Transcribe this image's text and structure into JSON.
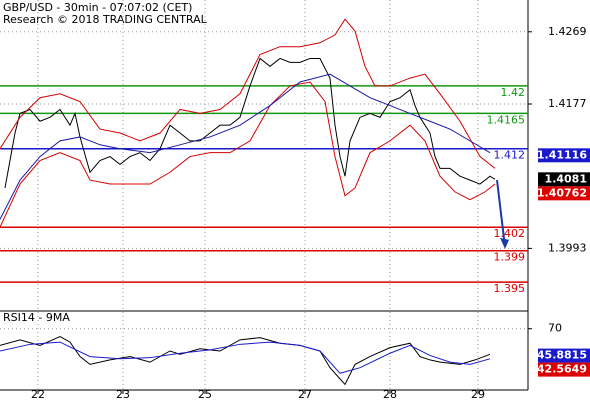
{
  "chart_data": [
    {
      "type": "line",
      "title": "GBP/USD - 30min - 07:07:02 (CET)",
      "subtitle": "Research © 2018 TRADING CENTRAL",
      "xlim": [
        0,
        528
      ],
      "ylim": [
        1.43095,
        1.39145
      ],
      "yticks": [
        1.4269,
        1.4177,
        1.3993
      ],
      "grid": true,
      "series": [
        {
          "color": "#000000",
          "x": [
            5,
            10,
            15,
            20,
            30,
            40,
            50,
            60,
            70,
            75,
            80,
            90,
            100,
            110,
            120,
            130,
            140,
            150,
            160,
            170,
            180,
            190,
            200,
            210,
            220,
            230,
            240,
            250,
            260,
            270,
            280,
            290,
            300,
            310,
            320,
            330,
            335,
            340,
            345,
            350,
            360,
            370,
            380,
            390,
            400,
            410,
            415,
            420,
            430,
            435,
            440,
            450,
            460,
            470,
            480,
            490,
            495
          ],
          "values": [
            1.407,
            1.4105,
            1.414,
            1.4165,
            1.417,
            1.4155,
            1.416,
            1.417,
            1.415,
            1.4165,
            1.4135,
            1.409,
            1.4105,
            1.411,
            1.41,
            1.411,
            1.4115,
            1.4105,
            1.412,
            1.415,
            1.414,
            1.413,
            1.413,
            1.414,
            1.415,
            1.415,
            1.416,
            1.42,
            1.4235,
            1.4225,
            1.4235,
            1.423,
            1.423,
            1.4235,
            1.4235,
            1.421,
            1.415,
            1.411,
            1.4085,
            1.413,
            1.416,
            1.4165,
            1.416,
            1.418,
            1.4185,
            1.4195,
            1.4175,
            1.416,
            1.414,
            1.411,
            1.4095,
            1.4095,
            1.4085,
            1.408,
            1.4075,
            1.4085,
            1.4081
          ]
        },
        {
          "color": "#d40000",
          "x": [
            0,
            20,
            40,
            60,
            80,
            100,
            120,
            140,
            160,
            180,
            200,
            220,
            240,
            260,
            280,
            300,
            320,
            335,
            345,
            355,
            365,
            375,
            390,
            410,
            425,
            440,
            460,
            480,
            495
          ],
          "values": [
            1.412,
            1.416,
            1.4185,
            1.419,
            1.418,
            1.4145,
            1.414,
            1.413,
            1.414,
            1.417,
            1.4165,
            1.417,
            1.419,
            1.424,
            1.425,
            1.425,
            1.4255,
            1.4265,
            1.4285,
            1.427,
            1.4225,
            1.42,
            1.42,
            1.421,
            1.4215,
            1.419,
            1.4155,
            1.411,
            1.4095
          ]
        },
        {
          "color": "#d40000",
          "x": [
            0,
            20,
            40,
            60,
            80,
            90,
            110,
            130,
            150,
            170,
            190,
            210,
            230,
            250,
            270,
            290,
            310,
            325,
            335,
            345,
            355,
            370,
            390,
            410,
            425,
            440,
            455,
            470,
            485,
            495
          ],
          "values": [
            1.402,
            1.4075,
            1.4105,
            1.4115,
            1.4105,
            1.408,
            1.4075,
            1.4075,
            1.4075,
            1.409,
            1.411,
            1.4115,
            1.4115,
            1.413,
            1.4175,
            1.42,
            1.4205,
            1.418,
            1.411,
            1.406,
            1.407,
            1.4115,
            1.413,
            1.415,
            1.413,
            1.4085,
            1.4065,
            1.4055,
            1.4065,
            1.4075
          ]
        },
        {
          "color": "#1a1aa6",
          "x": [
            0,
            20,
            40,
            60,
            80,
            100,
            120,
            150,
            180,
            210,
            240,
            270,
            300,
            330,
            350,
            370,
            390,
            410,
            430,
            450,
            470,
            490
          ],
          "values": [
            1.403,
            1.408,
            1.411,
            1.413,
            1.4135,
            1.4125,
            1.412,
            1.4115,
            1.4125,
            1.4135,
            1.415,
            1.4175,
            1.4205,
            1.4215,
            1.42,
            1.4185,
            1.4175,
            1.4165,
            1.4155,
            1.4145,
            1.413,
            1.4115
          ]
        }
      ],
      "projection": {
        "color": "#1a3aa6",
        "x": [
          497,
          505
        ],
        "values": [
          1.408,
          1.3995
        ]
      },
      "levels": [
        {
          "value": 1.42,
          "color": "#119911"
        },
        {
          "value": 1.4165,
          "color": "#119911"
        },
        {
          "value": 1.412,
          "color": "#1a1acc"
        },
        {
          "value": 1.402,
          "color": "#dd0000"
        },
        {
          "value": 1.399,
          "color": "#dd0000"
        },
        {
          "value": 1.395,
          "color": "#dd0000"
        }
      ],
      "markers": [
        {
          "value": 1.41116,
          "color": "#1a1acc"
        },
        {
          "value": 1.4081,
          "color": "#000000"
        },
        {
          "value": 1.40762,
          "color": "#dd0000"
        }
      ]
    },
    {
      "type": "line",
      "title": "RSI14 - 9MA",
      "xlim": [
        0,
        528
      ],
      "ylim": [
        85,
        15
      ],
      "yticks": [
        70
      ],
      "xticks": [
        {
          "value": 38,
          "label": "22"
        },
        {
          "value": 123,
          "label": "23"
        },
        {
          "value": 205,
          "label": "25"
        },
        {
          "value": 305,
          "label": "27"
        },
        {
          "value": 390,
          "label": "28"
        },
        {
          "value": 478,
          "label": "29"
        }
      ],
      "grid": true,
      "series": [
        {
          "color": "#000000",
          "x": [
            0,
            20,
            40,
            60,
            70,
            80,
            90,
            110,
            130,
            150,
            170,
            180,
            200,
            220,
            240,
            260,
            280,
            300,
            320,
            330,
            340,
            345,
            355,
            370,
            390,
            410,
            420,
            430,
            440,
            460,
            475,
            490
          ],
          "values": [
            55,
            60,
            55,
            63,
            58,
            45,
            38,
            42,
            45,
            40,
            50,
            47,
            52,
            50,
            60,
            62,
            57,
            55,
            50,
            35,
            25,
            20,
            38,
            45,
            53,
            57,
            45,
            42,
            40,
            38,
            42,
            47
          ]
        },
        {
          "color": "#1a1acc",
          "x": [
            0,
            30,
            60,
            90,
            120,
            150,
            180,
            210,
            240,
            270,
            300,
            320,
            340,
            360,
            390,
            410,
            430,
            450,
            470,
            490
          ],
          "values": [
            50,
            56,
            58,
            45,
            43,
            44,
            48,
            51,
            56,
            58,
            55,
            50,
            30,
            35,
            48,
            55,
            46,
            40,
            38,
            43
          ]
        }
      ],
      "markers": [
        {
          "value": 45.8815,
          "color": "#1a1acc"
        },
        {
          "value": 42.5649,
          "color": "#dd0000"
        }
      ]
    }
  ]
}
